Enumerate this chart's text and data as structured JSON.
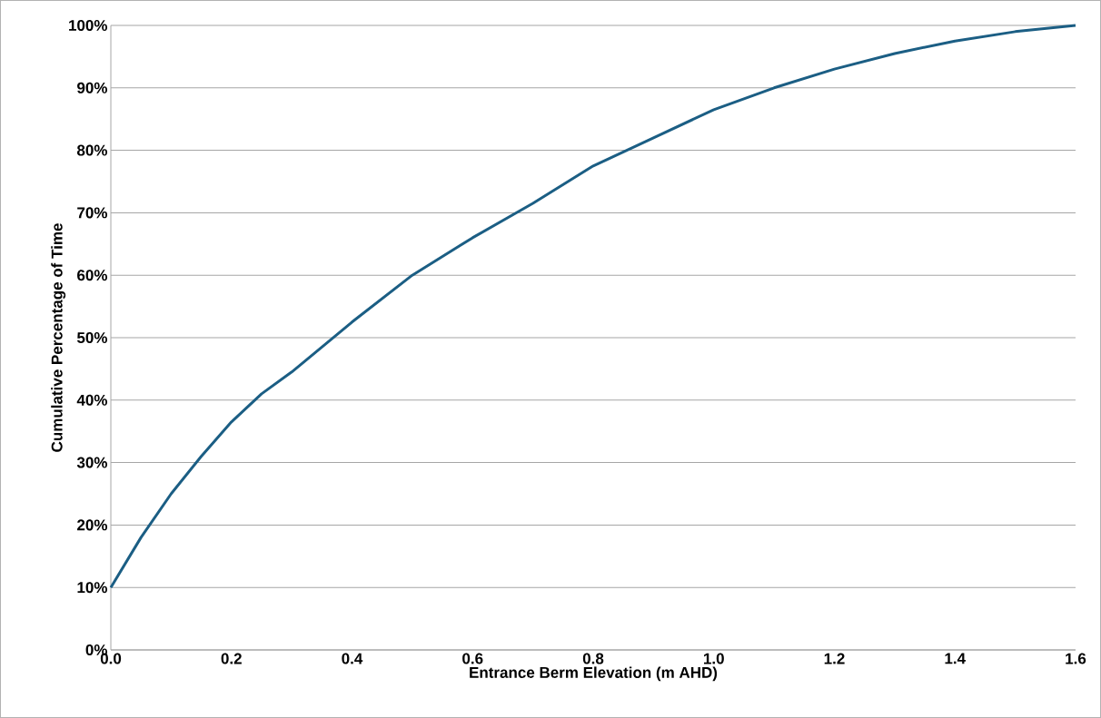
{
  "chart_data": {
    "type": "line",
    "xlabel": "Entrance Berm Elevation (m AHD)",
    "ylabel": "Cumulative Percentage of Time",
    "x": [
      0,
      0.05,
      0.1,
      0.15,
      0.2,
      0.25,
      0.3,
      0.4,
      0.5,
      0.6,
      0.7,
      0.8,
      0.9,
      1.0,
      1.1,
      1.2,
      1.3,
      1.4,
      1.5,
      1.6
    ],
    "series": [
      {
        "color": "#1b5e84",
        "values": [
          10,
          18,
          25,
          31,
          36.5,
          41,
          44.5,
          52.5,
          60,
          66,
          71.5,
          77.5,
          82,
          86.5,
          90,
          93,
          95.5,
          97.5,
          99,
          100
        ]
      }
    ],
    "xlim": [
      0,
      1.6
    ],
    "ylim": [
      0,
      100
    ],
    "xticks": [
      {
        "value": 0,
        "label": "0.0"
      },
      {
        "value": 0.2,
        "label": "0.2"
      },
      {
        "value": 0.4,
        "label": "0.4"
      },
      {
        "value": 0.6,
        "label": "0.6"
      },
      {
        "value": 0.8,
        "label": "0.8"
      },
      {
        "value": 1.0,
        "label": "1.0"
      },
      {
        "value": 1.2,
        "label": "1.2"
      },
      {
        "value": 1.4,
        "label": "1.4"
      },
      {
        "value": 1.6,
        "label": "1.6"
      }
    ],
    "yticks": [
      {
        "value": 0,
        "label": "0%"
      },
      {
        "value": 10,
        "label": "10%"
      },
      {
        "value": 20,
        "label": "20%"
      },
      {
        "value": 30,
        "label": "30%"
      },
      {
        "value": 40,
        "label": "40%"
      },
      {
        "value": 50,
        "label": "50%"
      },
      {
        "value": 60,
        "label": "60%"
      },
      {
        "value": 70,
        "label": "70%"
      },
      {
        "value": 80,
        "label": "80%"
      },
      {
        "value": 90,
        "label": "90%"
      },
      {
        "value": 100,
        "label": "100%"
      }
    ],
    "grid": "y",
    "marker": "none",
    "line_style": "solid"
  }
}
